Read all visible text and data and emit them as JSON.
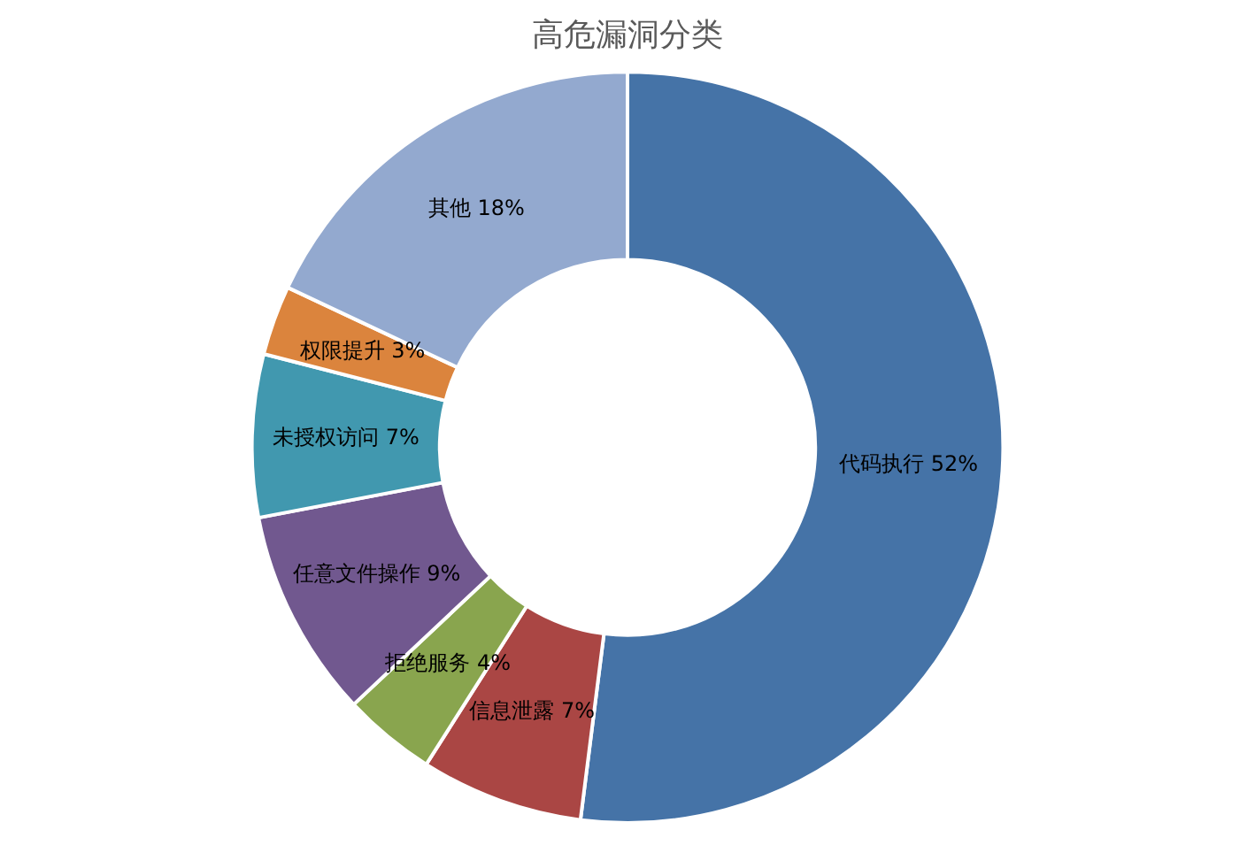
{
  "chart_data": {
    "type": "donut",
    "title": "高危漏洞分类",
    "categories": [
      "代码执行",
      "信息泄露",
      "拒绝服务",
      "任意文件操作",
      "未授权访问",
      "权限提升",
      "其他"
    ],
    "values": [
      52,
      7,
      4,
      9,
      7,
      3,
      18
    ],
    "value_labels": [
      "52%",
      "7%",
      "4%",
      "9%",
      "7%",
      "3%",
      "18%"
    ],
    "colors": [
      "#4573a7",
      "#aa4644",
      "#89a54e",
      "#71588f",
      "#4198af",
      "#db843d",
      "#93a9cf"
    ],
    "legend": false
  }
}
